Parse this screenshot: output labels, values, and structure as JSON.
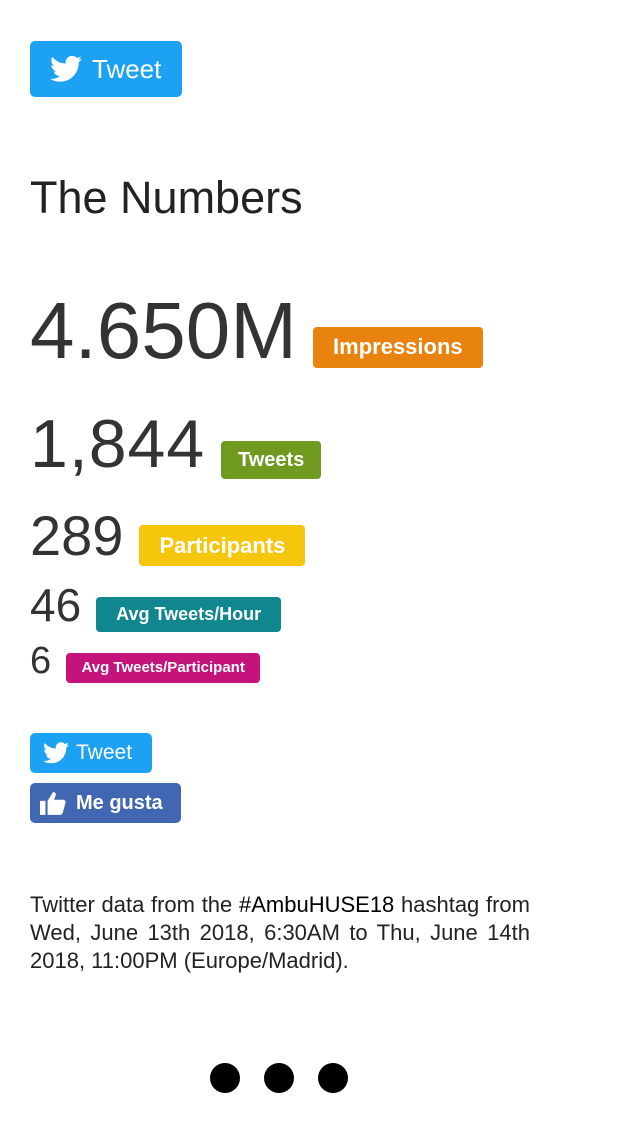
{
  "top_button": {
    "label": "Tweet"
  },
  "heading": "The Numbers",
  "stats": [
    {
      "value": "4.650M",
      "label": "Impressions"
    },
    {
      "value": "1,844",
      "label": "Tweets"
    },
    {
      "value": "289",
      "label": "Participants"
    },
    {
      "value": "46",
      "label": "Avg Tweets/Hour"
    },
    {
      "value": "6",
      "label": "Avg Tweets/Participant"
    }
  ],
  "share_buttons": {
    "tweet": "Tweet",
    "like": "Me gusta"
  },
  "description": {
    "before": "Twitter data from the",
    "hashtag": "#AmbuHUSE18",
    "after": "hashtag from Wed, June 13th 2018, 6:30AM to Thu, June 14th 2018, 11:00PM (Europe/Madrid)."
  }
}
